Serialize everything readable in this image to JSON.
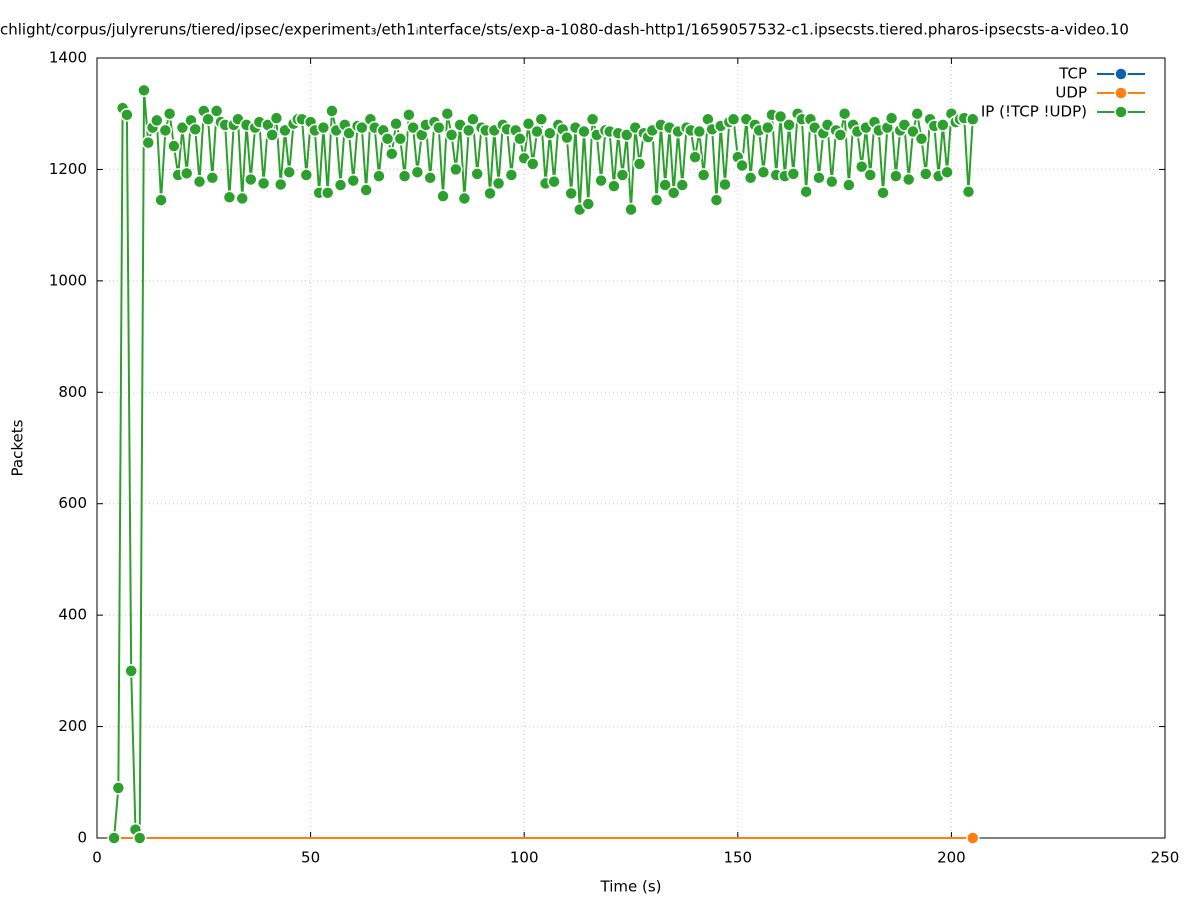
{
  "chart_data": {
    "type": "line",
    "title": "chlight/corpus/julyreruns/tiered/ipsec/experiment₃/eth1ᵢnterface/sts/exp-a-1080-dash-http1/1659057532-c1.ipsecsts.tiered.pharos-ipsecsts-a-video.10",
    "x_label": "Time (s)",
    "y_label": "Packets",
    "xlim": [
      0,
      250
    ],
    "xticks": [
      0,
      50,
      100,
      150,
      200,
      250
    ],
    "ylim": [
      0,
      1400
    ],
    "yticks": [
      0,
      200,
      400,
      600,
      800,
      1000,
      1200,
      1400
    ],
    "grid": true,
    "legend": "top-right",
    "x": [
      4,
      5,
      6,
      7,
      8,
      9,
      10,
      11,
      12,
      13,
      14,
      15,
      16,
      17,
      18,
      19,
      20,
      21,
      22,
      23,
      24,
      25,
      26,
      27,
      28,
      29,
      30,
      31,
      32,
      33,
      34,
      35,
      36,
      37,
      38,
      39,
      40,
      41,
      42,
      43,
      44,
      45,
      46,
      47,
      48,
      49,
      50,
      51,
      52,
      53,
      54,
      55,
      56,
      57,
      58,
      59,
      60,
      61,
      62,
      63,
      64,
      65,
      66,
      67,
      68,
      69,
      70,
      71,
      72,
      73,
      74,
      75,
      76,
      77,
      78,
      79,
      80,
      81,
      82,
      83,
      84,
      85,
      86,
      87,
      88,
      89,
      90,
      91,
      92,
      93,
      94,
      95,
      96,
      97,
      98,
      99,
      100,
      101,
      102,
      103,
      104,
      105,
      106,
      107,
      108,
      109,
      110,
      111,
      112,
      113,
      114,
      115,
      116,
      117,
      118,
      119,
      120,
      121,
      122,
      123,
      124,
      125,
      126,
      127,
      128,
      129,
      130,
      131,
      132,
      133,
      134,
      135,
      136,
      137,
      138,
      139,
      140,
      141,
      142,
      143,
      144,
      145,
      146,
      147,
      148,
      149,
      150,
      151,
      152,
      153,
      154,
      155,
      156,
      157,
      158,
      159,
      160,
      161,
      162,
      163,
      164,
      165,
      166,
      167,
      168,
      169,
      170,
      171,
      172,
      173,
      174,
      175,
      176,
      177,
      178,
      179,
      180,
      181,
      182,
      183,
      184,
      185,
      186,
      187,
      188,
      189,
      190,
      191,
      192,
      193,
      194,
      195,
      196,
      197,
      198,
      199,
      200,
      201,
      202,
      203,
      204,
      205
    ],
    "series": [
      {
        "name": "TCP",
        "color": "#0b60b0",
        "values": [
          0,
          0,
          0,
          0,
          0,
          0,
          0,
          0,
          0,
          0,
          0,
          0,
          0,
          0,
          0,
          0,
          0,
          0,
          0,
          0,
          0,
          0,
          0,
          0,
          0,
          0,
          0,
          0,
          0,
          0,
          0,
          0,
          0,
          0,
          0,
          0,
          0,
          0,
          0,
          0,
          0,
          0,
          0,
          0,
          0,
          0,
          0,
          0,
          0,
          0,
          0,
          0,
          0,
          0,
          0,
          0,
          0,
          0,
          0,
          0,
          0,
          0,
          0,
          0,
          0,
          0,
          0,
          0,
          0,
          0,
          0,
          0,
          0,
          0,
          0,
          0,
          0,
          0,
          0,
          0,
          0,
          0,
          0,
          0,
          0,
          0,
          0,
          0,
          0,
          0,
          0,
          0,
          0,
          0,
          0,
          0,
          0,
          0,
          0,
          0,
          0,
          0,
          0,
          0,
          0,
          0,
          0,
          0,
          0,
          0,
          0,
          0,
          0,
          0,
          0,
          0,
          0,
          0,
          0,
          0,
          0,
          0,
          0,
          0,
          0,
          0,
          0,
          0,
          0,
          0,
          0,
          0,
          0,
          0,
          0,
          0,
          0,
          0,
          0,
          0,
          0,
          0,
          0,
          0,
          0,
          0,
          0,
          0,
          0,
          0,
          0,
          0,
          0,
          0,
          0,
          0,
          0,
          0,
          0,
          0,
          0,
          0,
          0,
          0,
          0,
          0,
          0,
          0,
          0,
          0,
          0,
          0,
          0,
          0,
          0,
          0,
          0,
          0,
          0,
          0,
          0,
          0,
          0,
          0,
          0,
          0,
          0,
          0,
          0,
          0,
          0,
          0,
          0,
          0,
          0,
          0,
          0,
          0,
          0,
          0,
          0,
          0
        ]
      },
      {
        "name": "UDP",
        "color": "#ff7f0e",
        "values": [
          0,
          0,
          0,
          0,
          0,
          0,
          0,
          0,
          0,
          0,
          0,
          0,
          0,
          0,
          0,
          0,
          0,
          0,
          0,
          0,
          0,
          0,
          0,
          0,
          0,
          0,
          0,
          0,
          0,
          0,
          0,
          0,
          0,
          0,
          0,
          0,
          0,
          0,
          0,
          0,
          0,
          0,
          0,
          0,
          0,
          0,
          0,
          0,
          0,
          0,
          0,
          0,
          0,
          0,
          0,
          0,
          0,
          0,
          0,
          0,
          0,
          0,
          0,
          0,
          0,
          0,
          0,
          0,
          0,
          0,
          0,
          0,
          0,
          0,
          0,
          0,
          0,
          0,
          0,
          0,
          0,
          0,
          0,
          0,
          0,
          0,
          0,
          0,
          0,
          0,
          0,
          0,
          0,
          0,
          0,
          0,
          0,
          0,
          0,
          0,
          0,
          0,
          0,
          0,
          0,
          0,
          0,
          0,
          0,
          0,
          0,
          0,
          0,
          0,
          0,
          0,
          0,
          0,
          0,
          0,
          0,
          0,
          0,
          0,
          0,
          0,
          0,
          0,
          0,
          0,
          0,
          0,
          0,
          0,
          0,
          0,
          0,
          0,
          0,
          0,
          0,
          0,
          0,
          0,
          0,
          0,
          0,
          0,
          0,
          0,
          0,
          0,
          0,
          0,
          0,
          0,
          0,
          0,
          0,
          0,
          0,
          0,
          0,
          0,
          0,
          0,
          0,
          0,
          0,
          0,
          0,
          0,
          0,
          0,
          0,
          0,
          0,
          0,
          0,
          0,
          0,
          0,
          0,
          0,
          0,
          0,
          0,
          0,
          0,
          0,
          0,
          0,
          0,
          0,
          0,
          0,
          0,
          0,
          0,
          0,
          0,
          0
        ]
      },
      {
        "name": "IP (!TCP  !UDP)",
        "color": "#2ca02c",
        "values": [
          0,
          90,
          1310,
          1298,
          300,
          15,
          0,
          1342,
          1248,
          1275,
          1288,
          1145,
          1270,
          1300,
          1242,
          1190,
          1275,
          1193,
          1288,
          1272,
          1178,
          1305,
          1290,
          1185,
          1305,
          1285,
          1280,
          1150,
          1280,
          1290,
          1148,
          1280,
          1182,
          1275,
          1285,
          1175,
          1280,
          1262,
          1292,
          1173,
          1270,
          1195,
          1282,
          1290,
          1290,
          1190,
          1285,
          1270,
          1158,
          1275,
          1158,
          1305,
          1270,
          1172,
          1280,
          1265,
          1180,
          1278,
          1275,
          1163,
          1290,
          1275,
          1188,
          1270,
          1255,
          1228,
          1282,
          1255,
          1188,
          1298,
          1275,
          1195,
          1262,
          1280,
          1185,
          1285,
          1275,
          1152,
          1300,
          1262,
          1200,
          1280,
          1148,
          1270,
          1290,
          1192,
          1275,
          1270,
          1157,
          1270,
          1175,
          1280,
          1272,
          1190,
          1270,
          1255,
          1220,
          1282,
          1210,
          1268,
          1290,
          1175,
          1265,
          1178,
          1280,
          1272,
          1257,
          1157,
          1275,
          1128,
          1268,
          1138,
          1290,
          1262,
          1180,
          1270,
          1268,
          1170,
          1265,
          1190,
          1262,
          1128,
          1275,
          1210,
          1265,
          1258,
          1270,
          1145,
          1280,
          1172,
          1275,
          1158,
          1268,
          1172,
          1275,
          1270,
          1222,
          1268,
          1190,
          1290,
          1272,
          1145,
          1278,
          1173,
          1285,
          1290,
          1222,
          1207,
          1290,
          1185,
          1280,
          1270,
          1195,
          1275,
          1298,
          1190,
          1295,
          1188,
          1280,
          1192,
          1300,
          1290,
          1160,
          1290,
          1275,
          1185,
          1265,
          1280,
          1178,
          1270,
          1262,
          1300,
          1172,
          1280,
          1268,
          1205,
          1275,
          1190,
          1285,
          1270,
          1158,
          1275,
          1292,
          1188,
          1270,
          1280,
          1182,
          1268,
          1300,
          1255,
          1192,
          1290,
          1278,
          1188,
          1280,
          1195,
          1300,
          1285,
          1290,
          1292,
          1160,
          1290
        ]
      }
    ]
  }
}
